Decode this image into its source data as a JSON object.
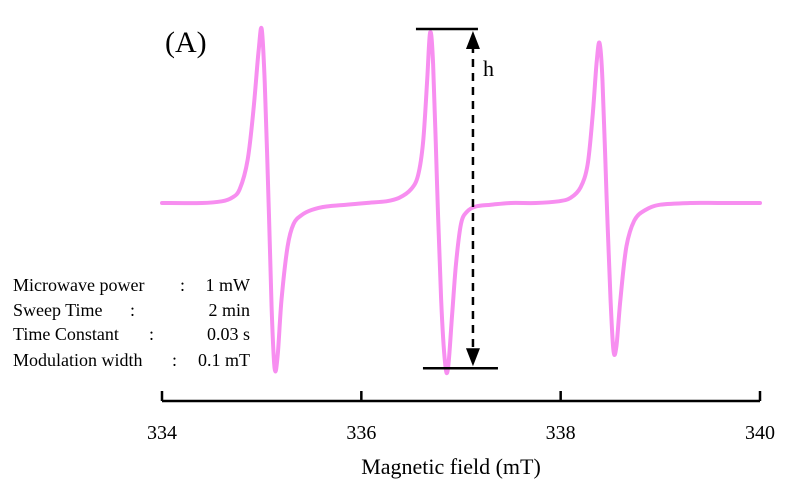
{
  "chart_data": {
    "type": "line",
    "panel_label": "(A)",
    "xlabel": "Magnetic field (mT)",
    "ylabel": "",
    "xlim": [
      334,
      340
    ],
    "ylim": [
      -1,
      1
    ],
    "x_ticks": [
      334,
      336,
      338,
      340
    ],
    "series": [
      {
        "color": "#f78ef0",
        "x": [
          334.0,
          334.4,
          334.6,
          334.7,
          334.78,
          334.86,
          334.92,
          334.97,
          335.0,
          335.03,
          335.07,
          335.1,
          335.13,
          335.16,
          335.2,
          335.26,
          335.32,
          335.4,
          335.5,
          335.65,
          335.85,
          336.05,
          336.25,
          336.38,
          336.5,
          336.57,
          336.62,
          336.66,
          336.69,
          336.72,
          336.76,
          336.8,
          336.84,
          336.87,
          336.91,
          336.95,
          337.0,
          337.06,
          337.15,
          337.3,
          337.5,
          337.75,
          337.98,
          338.1,
          338.2,
          338.27,
          338.32,
          338.36,
          338.39,
          338.42,
          338.46,
          338.5,
          338.53,
          338.56,
          338.6,
          338.66,
          338.74,
          338.85,
          339.0,
          339.3,
          339.6,
          340.0
        ],
        "y": [
          0.0,
          0.0,
          0.01,
          0.03,
          0.08,
          0.25,
          0.55,
          0.88,
          1.0,
          0.7,
          0.0,
          -0.6,
          -0.95,
          -0.88,
          -0.55,
          -0.25,
          -0.12,
          -0.07,
          -0.04,
          -0.02,
          -0.01,
          0.0,
          0.01,
          0.03,
          0.08,
          0.16,
          0.35,
          0.7,
          0.98,
          0.8,
          0.1,
          -0.55,
          -0.92,
          -0.95,
          -0.65,
          -0.35,
          -0.12,
          -0.05,
          -0.02,
          -0.01,
          0.0,
          0.0,
          0.01,
          0.03,
          0.09,
          0.22,
          0.5,
          0.8,
          0.92,
          0.7,
          0.05,
          -0.55,
          -0.85,
          -0.82,
          -0.55,
          -0.25,
          -0.1,
          -0.04,
          -0.01,
          0.0,
          0.0,
          0.0
        ]
      }
    ],
    "annotations": {
      "height_label": "h",
      "top_level": 1.0,
      "bottom_level": -0.95,
      "center_field": 337.12
    }
  },
  "conditions": [
    {
      "label": "Microwave power",
      "sep": ":",
      "value": "1 mW"
    },
    {
      "label": "Sweep Time",
      "sep": ":",
      "value": "2 min"
    },
    {
      "label": "Time Constant",
      "sep": ":",
      "value": "0.03 s"
    },
    {
      "label": "Modulation width",
      "sep": ":",
      "value": "0.1 mT"
    }
  ]
}
